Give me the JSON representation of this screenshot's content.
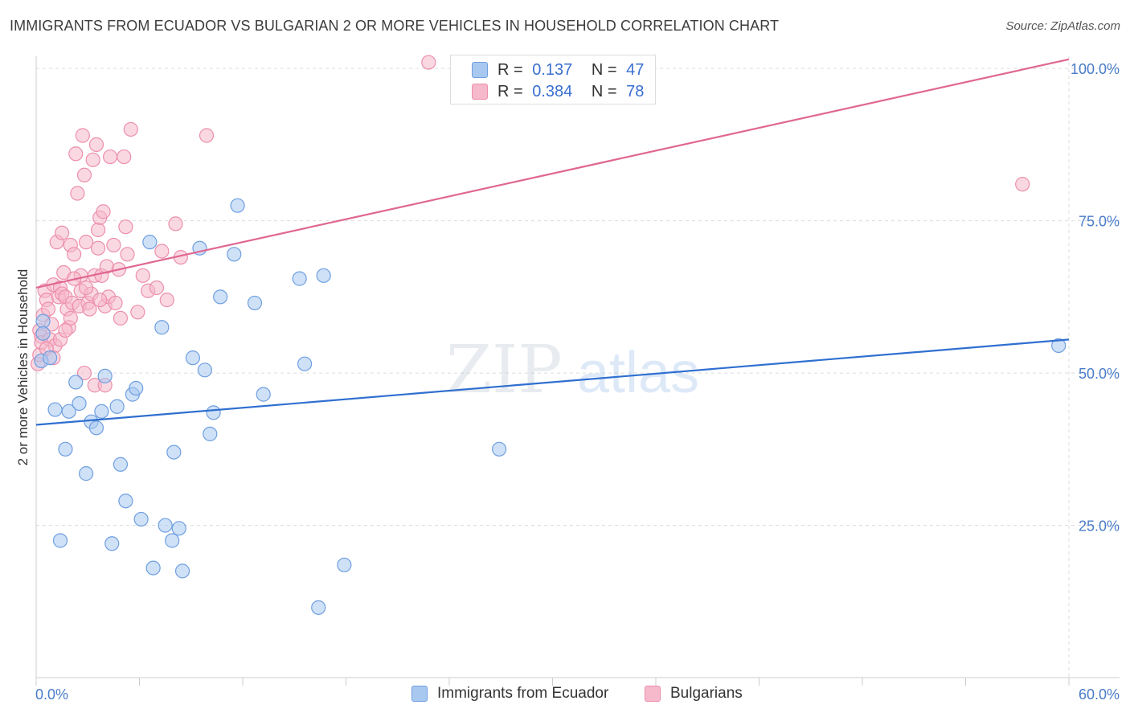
{
  "title": "IMMIGRANTS FROM ECUADOR VS BULGARIAN 2 OR MORE VEHICLES IN HOUSEHOLD CORRELATION CHART",
  "source": "Source: ZipAtlas.com",
  "watermark": {
    "zip": "ZIP",
    "atlas": "atlas"
  },
  "legend": {
    "series1": {
      "r_label": "R =",
      "r_value": "0.137",
      "n_label": "N =",
      "n_value": "47"
    },
    "series2": {
      "r_label": "R =",
      "r_value": "0.384",
      "n_label": "N =",
      "n_value": "78"
    }
  },
  "bottom_legend": {
    "series1": "Immigrants from Ecuador",
    "series2": "Bulgarians"
  },
  "colors": {
    "blue_fill": "#a8c8f0",
    "blue_stroke": "#6f9fe0",
    "blue_line": "#2f6fd0",
    "pink_fill": "#f6b8cb",
    "pink_stroke": "#ec8fac",
    "pink_line": "#e06792",
    "tick_text": "#4a7cc9",
    "grid": "#dddddd"
  },
  "chart_data": {
    "type": "scatter",
    "title": "IMMIGRANTS FROM ECUADOR VS BULGARIAN 2 OR MORE VEHICLES IN HOUSEHOLD CORRELATION CHART",
    "xlabel": "",
    "ylabel": "2 or more Vehicles in Household",
    "xlim": [
      0,
      60
    ],
    "ylim": [
      0,
      102
    ],
    "x_tick_labels": [
      "0.0%",
      "60.0%"
    ],
    "y_ticks": [
      25,
      50,
      75,
      100
    ],
    "y_tick_labels": [
      "25.0%",
      "50.0%",
      "75.0%",
      "100.0%"
    ],
    "series": [
      {
        "name": "Immigrants from Ecuador",
        "color": "#a8c8f0",
        "trend": {
          "x": [
            0,
            60
          ],
          "y": [
            41.5,
            55.5
          ]
        },
        "points": [
          {
            "x": 0.3,
            "y": 52.0
          },
          {
            "x": 0.4,
            "y": 58.5
          },
          {
            "x": 0.4,
            "y": 56.5
          },
          {
            "x": 0.8,
            "y": 52.5
          },
          {
            "x": 1.1,
            "y": 44.0
          },
          {
            "x": 1.4,
            "y": 22.5
          },
          {
            "x": 1.7,
            "y": 37.5
          },
          {
            "x": 1.9,
            "y": 43.7
          },
          {
            "x": 2.3,
            "y": 48.5
          },
          {
            "x": 2.5,
            "y": 45.0
          },
          {
            "x": 2.9,
            "y": 33.5
          },
          {
            "x": 3.2,
            "y": 42.0
          },
          {
            "x": 3.5,
            "y": 41.0
          },
          {
            "x": 3.8,
            "y": 43.7
          },
          {
            "x": 4.0,
            "y": 49.5
          },
          {
            "x": 4.4,
            "y": 22.0
          },
          {
            "x": 4.7,
            "y": 44.5
          },
          {
            "x": 4.9,
            "y": 35.0
          },
          {
            "x": 5.2,
            "y": 29.0
          },
          {
            "x": 5.6,
            "y": 46.5
          },
          {
            "x": 5.8,
            "y": 47.5
          },
          {
            "x": 6.1,
            "y": 26.0
          },
          {
            "x": 6.6,
            "y": 71.5
          },
          {
            "x": 6.8,
            "y": 18.0
          },
          {
            "x": 7.3,
            "y": 57.5
          },
          {
            "x": 7.5,
            "y": 25.0
          },
          {
            "x": 7.9,
            "y": 22.5
          },
          {
            "x": 8.0,
            "y": 37.0
          },
          {
            "x": 8.3,
            "y": 24.5
          },
          {
            "x": 8.5,
            "y": 17.5
          },
          {
            "x": 9.1,
            "y": 52.5
          },
          {
            "x": 9.5,
            "y": 70.5
          },
          {
            "x": 9.8,
            "y": 50.5
          },
          {
            "x": 10.1,
            "y": 40.0
          },
          {
            "x": 10.3,
            "y": 43.5
          },
          {
            "x": 10.7,
            "y": 62.5
          },
          {
            "x": 11.5,
            "y": 69.5
          },
          {
            "x": 11.7,
            "y": 77.5
          },
          {
            "x": 12.7,
            "y": 61.5
          },
          {
            "x": 13.2,
            "y": 46.5
          },
          {
            "x": 15.3,
            "y": 65.5
          },
          {
            "x": 15.6,
            "y": 51.5
          },
          {
            "x": 16.4,
            "y": 11.5
          },
          {
            "x": 16.7,
            "y": 66.0
          },
          {
            "x": 17.9,
            "y": 18.5
          },
          {
            "x": 26.9,
            "y": 37.5
          },
          {
            "x": 59.4,
            "y": 54.5
          }
        ]
      },
      {
        "name": "Bulgarians",
        "color": "#f6b8cb",
        "trend": {
          "x": [
            0,
            60
          ],
          "y": [
            64.0,
            101.5
          ]
        },
        "points": [
          {
            "x": 0.1,
            "y": 51.5
          },
          {
            "x": 0.2,
            "y": 53.0
          },
          {
            "x": 0.2,
            "y": 57.0
          },
          {
            "x": 0.3,
            "y": 56.0
          },
          {
            "x": 0.3,
            "y": 55.0
          },
          {
            "x": 0.4,
            "y": 59.5
          },
          {
            "x": 0.5,
            "y": 63.5
          },
          {
            "x": 0.6,
            "y": 62.0
          },
          {
            "x": 0.7,
            "y": 60.5
          },
          {
            "x": 0.8,
            "y": 55.5
          },
          {
            "x": 0.9,
            "y": 58.0
          },
          {
            "x": 1.0,
            "y": 64.5
          },
          {
            "x": 1.1,
            "y": 54.5
          },
          {
            "x": 1.2,
            "y": 71.5
          },
          {
            "x": 1.3,
            "y": 62.5
          },
          {
            "x": 1.4,
            "y": 64.0
          },
          {
            "x": 1.4,
            "y": 55.5
          },
          {
            "x": 1.5,
            "y": 63.0
          },
          {
            "x": 1.5,
            "y": 73.0
          },
          {
            "x": 1.6,
            "y": 66.5
          },
          {
            "x": 1.7,
            "y": 62.5
          },
          {
            "x": 1.8,
            "y": 60.5
          },
          {
            "x": 1.9,
            "y": 57.5
          },
          {
            "x": 2.0,
            "y": 71.0
          },
          {
            "x": 2.0,
            "y": 59.0
          },
          {
            "x": 2.1,
            "y": 61.5
          },
          {
            "x": 2.2,
            "y": 69.5
          },
          {
            "x": 2.3,
            "y": 86.0
          },
          {
            "x": 2.4,
            "y": 79.5
          },
          {
            "x": 2.5,
            "y": 61.0
          },
          {
            "x": 2.6,
            "y": 66.0
          },
          {
            "x": 2.6,
            "y": 63.5
          },
          {
            "x": 2.7,
            "y": 89.0
          },
          {
            "x": 2.8,
            "y": 50.0
          },
          {
            "x": 2.8,
            "y": 82.5
          },
          {
            "x": 2.9,
            "y": 71.5
          },
          {
            "x": 3.0,
            "y": 61.5
          },
          {
            "x": 3.1,
            "y": 60.5
          },
          {
            "x": 3.2,
            "y": 63.0
          },
          {
            "x": 3.3,
            "y": 85.0
          },
          {
            "x": 3.4,
            "y": 48.0
          },
          {
            "x": 3.4,
            "y": 66.0
          },
          {
            "x": 3.5,
            "y": 87.5
          },
          {
            "x": 3.6,
            "y": 73.5
          },
          {
            "x": 3.6,
            "y": 70.5
          },
          {
            "x": 3.7,
            "y": 75.5
          },
          {
            "x": 3.8,
            "y": 66.0
          },
          {
            "x": 3.9,
            "y": 76.5
          },
          {
            "x": 4.0,
            "y": 61.0
          },
          {
            "x": 4.0,
            "y": 48.0
          },
          {
            "x": 4.1,
            "y": 67.5
          },
          {
            "x": 4.2,
            "y": 62.5
          },
          {
            "x": 4.3,
            "y": 85.5
          },
          {
            "x": 4.5,
            "y": 71.0
          },
          {
            "x": 4.6,
            "y": 61.5
          },
          {
            "x": 4.8,
            "y": 67.0
          },
          {
            "x": 5.1,
            "y": 85.5
          },
          {
            "x": 5.2,
            "y": 74.0
          },
          {
            "x": 5.3,
            "y": 69.5
          },
          {
            "x": 5.5,
            "y": 90.0
          },
          {
            "x": 5.9,
            "y": 60.0
          },
          {
            "x": 6.2,
            "y": 66.0
          },
          {
            "x": 6.5,
            "y": 63.5
          },
          {
            "x": 7.0,
            "y": 64.0
          },
          {
            "x": 7.3,
            "y": 70.0
          },
          {
            "x": 7.6,
            "y": 62.0
          },
          {
            "x": 8.1,
            "y": 74.5
          },
          {
            "x": 8.4,
            "y": 69.0
          },
          {
            "x": 9.9,
            "y": 89.0
          },
          {
            "x": 0.6,
            "y": 54.0
          },
          {
            "x": 1.0,
            "y": 52.5
          },
          {
            "x": 1.7,
            "y": 57.0
          },
          {
            "x": 2.2,
            "y": 65.5
          },
          {
            "x": 2.9,
            "y": 64.0
          },
          {
            "x": 3.7,
            "y": 62.0
          },
          {
            "x": 4.9,
            "y": 59.0
          },
          {
            "x": 22.8,
            "y": 101.0
          },
          {
            "x": 57.3,
            "y": 81.0
          }
        ]
      }
    ]
  }
}
